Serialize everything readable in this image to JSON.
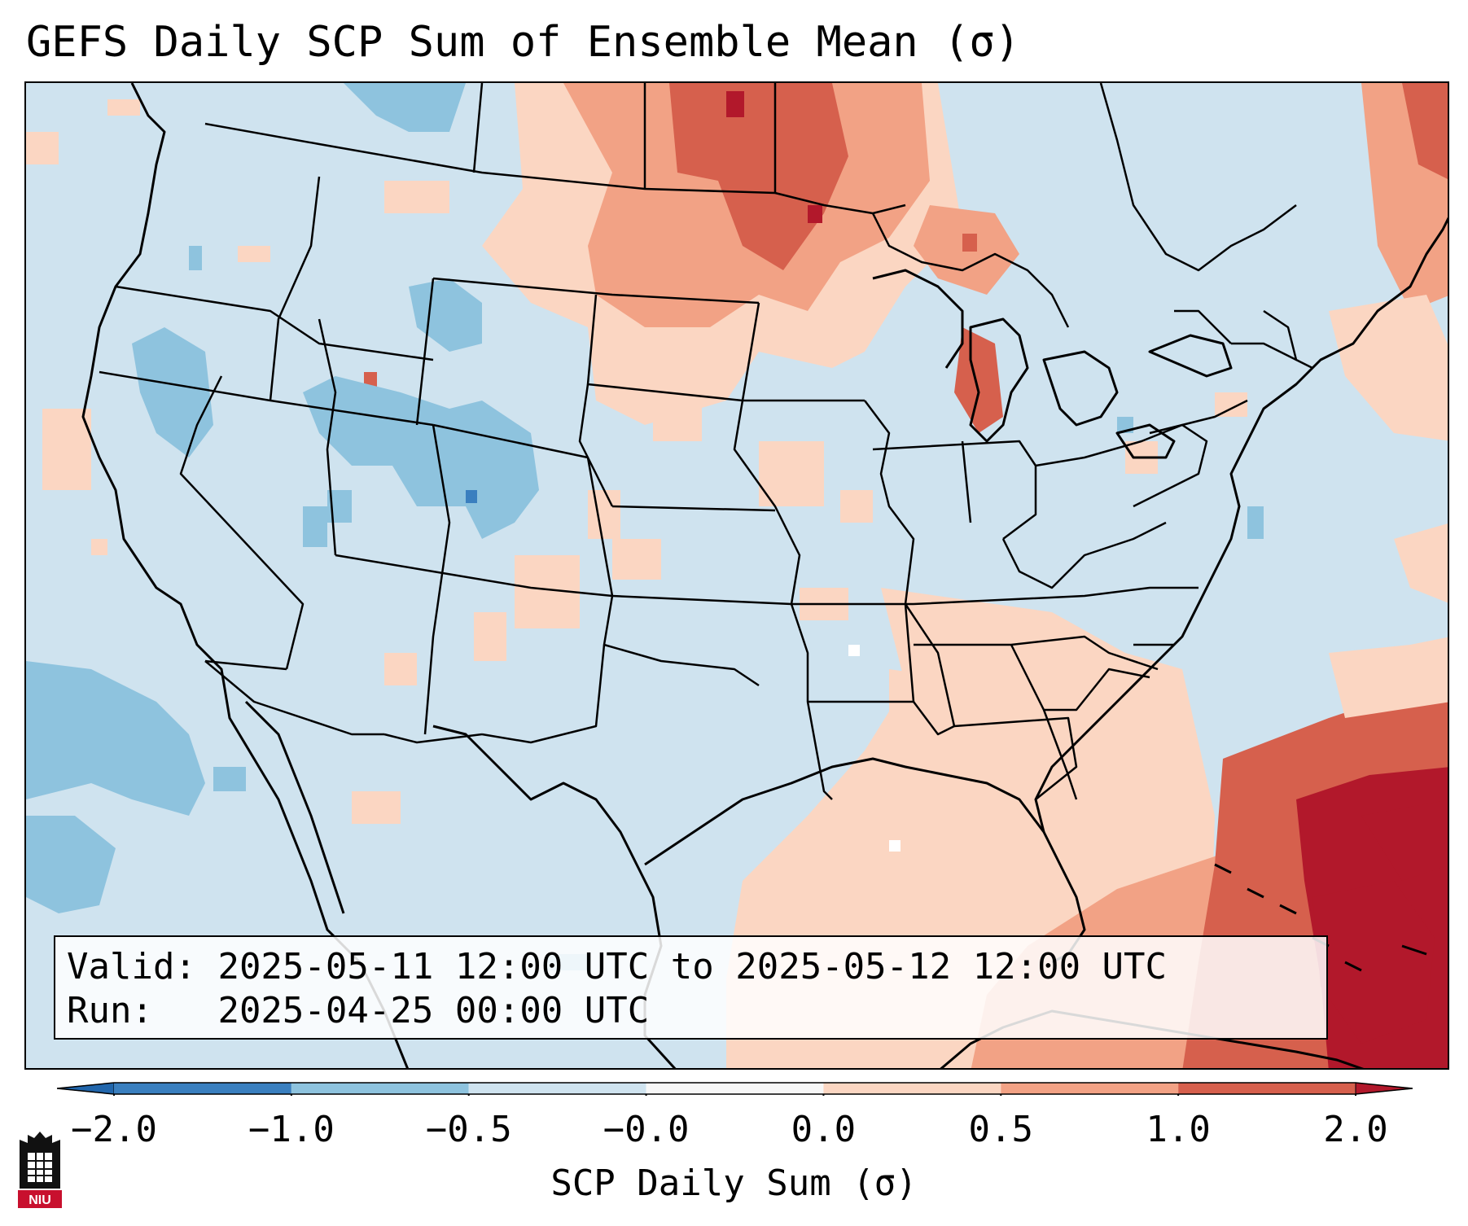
{
  "title": "GEFS Daily SCP Sum of Ensemble Mean (σ)",
  "info": {
    "valid_label": "Valid:",
    "valid_value": "2025-05-11 12:00 UTC to 2025-05-12 12:00 UTC",
    "run_label": "Run:",
    "run_value": "2025-04-25 00:00 UTC"
  },
  "colorbar": {
    "label": "SCP Daily Sum (σ)",
    "ticks": [
      "−2.0",
      "−1.0",
      "−0.5",
      "−0.0",
      "0.0",
      "0.5",
      "1.0",
      "2.0"
    ],
    "bins": [
      {
        "color": "#3a7fbf"
      },
      {
        "color": "#8ec3de"
      },
      {
        "color": "#cfe3ef"
      },
      {
        "color": "#f7f7f7"
      },
      {
        "color": "#fbd6c2"
      },
      {
        "color": "#f2a285"
      },
      {
        "color": "#d6604d"
      }
    ],
    "under_color": "#2166ac",
    "over_color": "#b2182b"
  },
  "colors": {
    "background_ocean": "#cfe3ef",
    "light_red": "#fbd6c2",
    "mid_red": "#f2a285",
    "red": "#d6604d",
    "dark_red": "#b2182b",
    "light_blue": "#8ec3de",
    "blue": "#3a7fbf"
  },
  "logo": {
    "text": "NIU",
    "icon": "niu-tower-logo"
  }
}
